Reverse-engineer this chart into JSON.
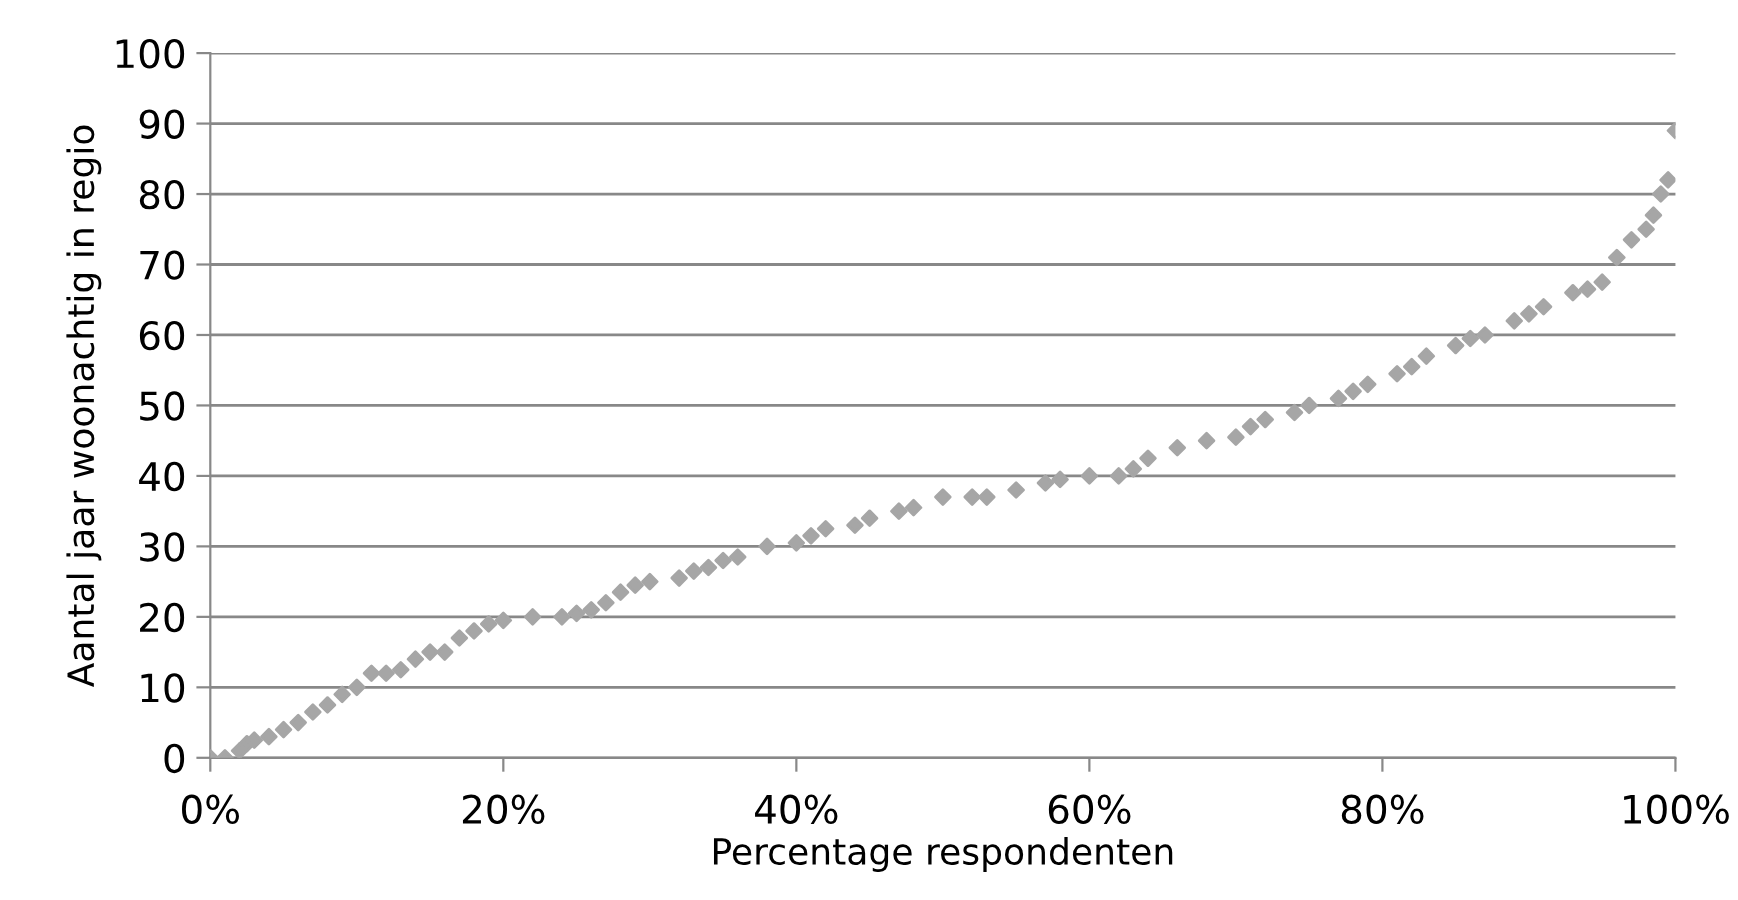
{
  "chart_data": {
    "type": "scatter",
    "xlabel": "Percentage respondenten",
    "ylabel": "Aantal jaar woonachtig in regio",
    "x": [
      0,
      1,
      2,
      2.5,
      3,
      4,
      5,
      6,
      7,
      8,
      9,
      10,
      11,
      12,
      13,
      14,
      15,
      16,
      17,
      18,
      19,
      20,
      22,
      24,
      25,
      26,
      27,
      28,
      29,
      30,
      32,
      33,
      34,
      35,
      36,
      38,
      40,
      41,
      42,
      44,
      45,
      47,
      48,
      50,
      52,
      53,
      55,
      57,
      58,
      60,
      62,
      63,
      64,
      66,
      68,
      70,
      71,
      72,
      74,
      75,
      77,
      78,
      79,
      81,
      82,
      83,
      85,
      86,
      87,
      89,
      90,
      91,
      93,
      94,
      95,
      96,
      97,
      98,
      98.5,
      99,
      99.5,
      100
    ],
    "series": [
      {
        "color": "#a6a6a6",
        "values": [
          0,
          0,
          1,
          2,
          2.5,
          3,
          4,
          5,
          6.5,
          7.5,
          9,
          10,
          12,
          12,
          12.5,
          14,
          15,
          15,
          17,
          18,
          19,
          19.5,
          20,
          20,
          20.5,
          21,
          22,
          23.5,
          24.5,
          25,
          25.5,
          26.5,
          27,
          28,
          28.5,
          30,
          30.5,
          31.5,
          32.5,
          33,
          34,
          35,
          35.5,
          37,
          37,
          37,
          38,
          39,
          39.5,
          40,
          40,
          41,
          42.5,
          44,
          45,
          45.5,
          47,
          48,
          49,
          50,
          51,
          52,
          53,
          54.5,
          55.5,
          57,
          58.5,
          59.5,
          60,
          62,
          63,
          64,
          66,
          66.5,
          67.5,
          71,
          73.5,
          75,
          77,
          80,
          82,
          89
        ]
      }
    ],
    "xlim": [
      0,
      100
    ],
    "xticks": [
      {
        "value": 0,
        "label": "0%"
      },
      {
        "value": 20,
        "label": "20%"
      },
      {
        "value": 40,
        "label": "40%"
      },
      {
        "value": 60,
        "label": "60%"
      },
      {
        "value": 80,
        "label": "80%"
      },
      {
        "value": 100,
        "label": "100%"
      }
    ],
    "ylim": [
      0,
      100
    ],
    "yticks": [
      0,
      10,
      20,
      30,
      40,
      50,
      60,
      70,
      80,
      90,
      100
    ],
    "grid": "y",
    "marker": "diamond"
  }
}
